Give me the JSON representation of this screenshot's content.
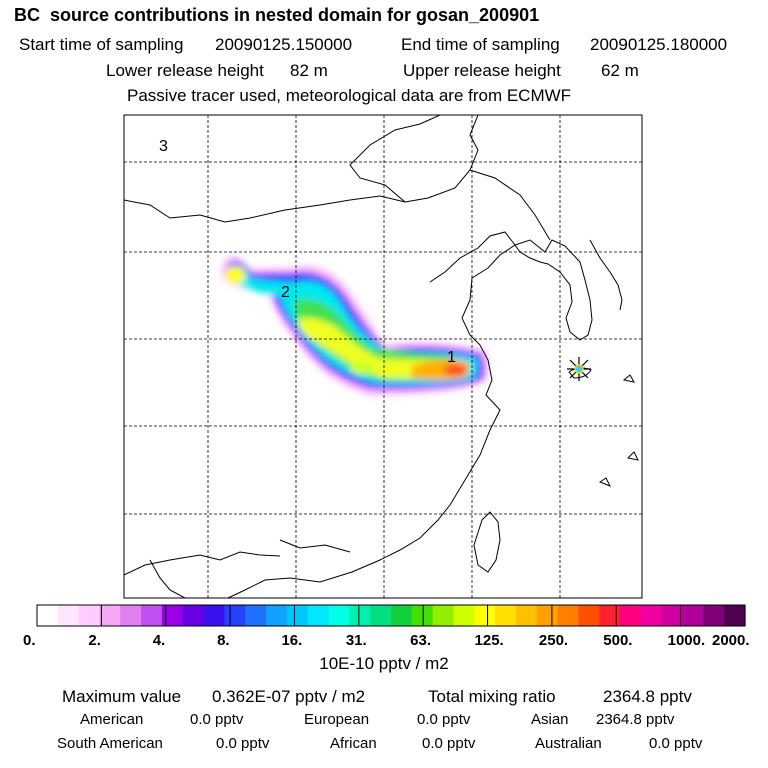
{
  "header": {
    "title": "BC  source contributions in nested domain for gosan_200901",
    "start_label": "Start time of sampling",
    "start_value": "20090125.150000",
    "end_label": "End time of sampling",
    "end_value": "20090125.180000",
    "lower_label": "Lower release height",
    "lower_value": "82 m",
    "upper_label": "Upper release height",
    "upper_value": "62 m",
    "subtitle": "Passive tracer used, meteorological data are from ECMWF"
  },
  "chart_data": {
    "type": "heatmap",
    "title": "BC  source contributions in nested domain for gosan_200901",
    "colorbar": {
      "ticks": [
        "0.",
        "2.",
        "4.",
        "8.",
        "16.",
        "31.",
        "63.",
        "125.",
        "250.",
        "500.",
        "1000.",
        "2000."
      ],
      "unit_label": "10E-10 pptv / m2",
      "colors": [
        "#ffffff",
        "#ffe6ff",
        "#ffccff",
        "#f5a6f5",
        "#e080f0",
        "#c050f0",
        "#9a00e8",
        "#6a00e6",
        "#3a10f0",
        "#2a40ff",
        "#2070ff",
        "#10a0ff",
        "#00c8ff",
        "#00e8ff",
        "#00ffe8",
        "#00f0b0",
        "#00e080",
        "#10d040",
        "#40e000",
        "#90f000",
        "#d0ff00",
        "#ffff00",
        "#ffe000",
        "#ffc000",
        "#ffa000",
        "#ff8000",
        "#ff5000",
        "#ff2030",
        "#ff0080",
        "#f000a0",
        "#d000a0",
        "#b0009a",
        "#80007a",
        "#500050"
      ]
    },
    "source_labels": [
      "1",
      "2",
      "3"
    ],
    "receptor": "gosan"
  },
  "stats": {
    "max_label": "Maximum value",
    "max_value": "0.362E-07 pptv / m2",
    "total_label": "Total mixing ratio",
    "total_value": "2364.8 pptv",
    "regions": [
      {
        "name": "American",
        "value": "0.0 pptv"
      },
      {
        "name": "European",
        "value": "0.0 pptv"
      },
      {
        "name": "Asian",
        "value": "2364.8 pptv"
      },
      {
        "name": "South American",
        "value": "0.0 pptv"
      },
      {
        "name": "African",
        "value": "0.0 pptv"
      },
      {
        "name": "Australian",
        "value": "0.0 pptv"
      }
    ]
  }
}
